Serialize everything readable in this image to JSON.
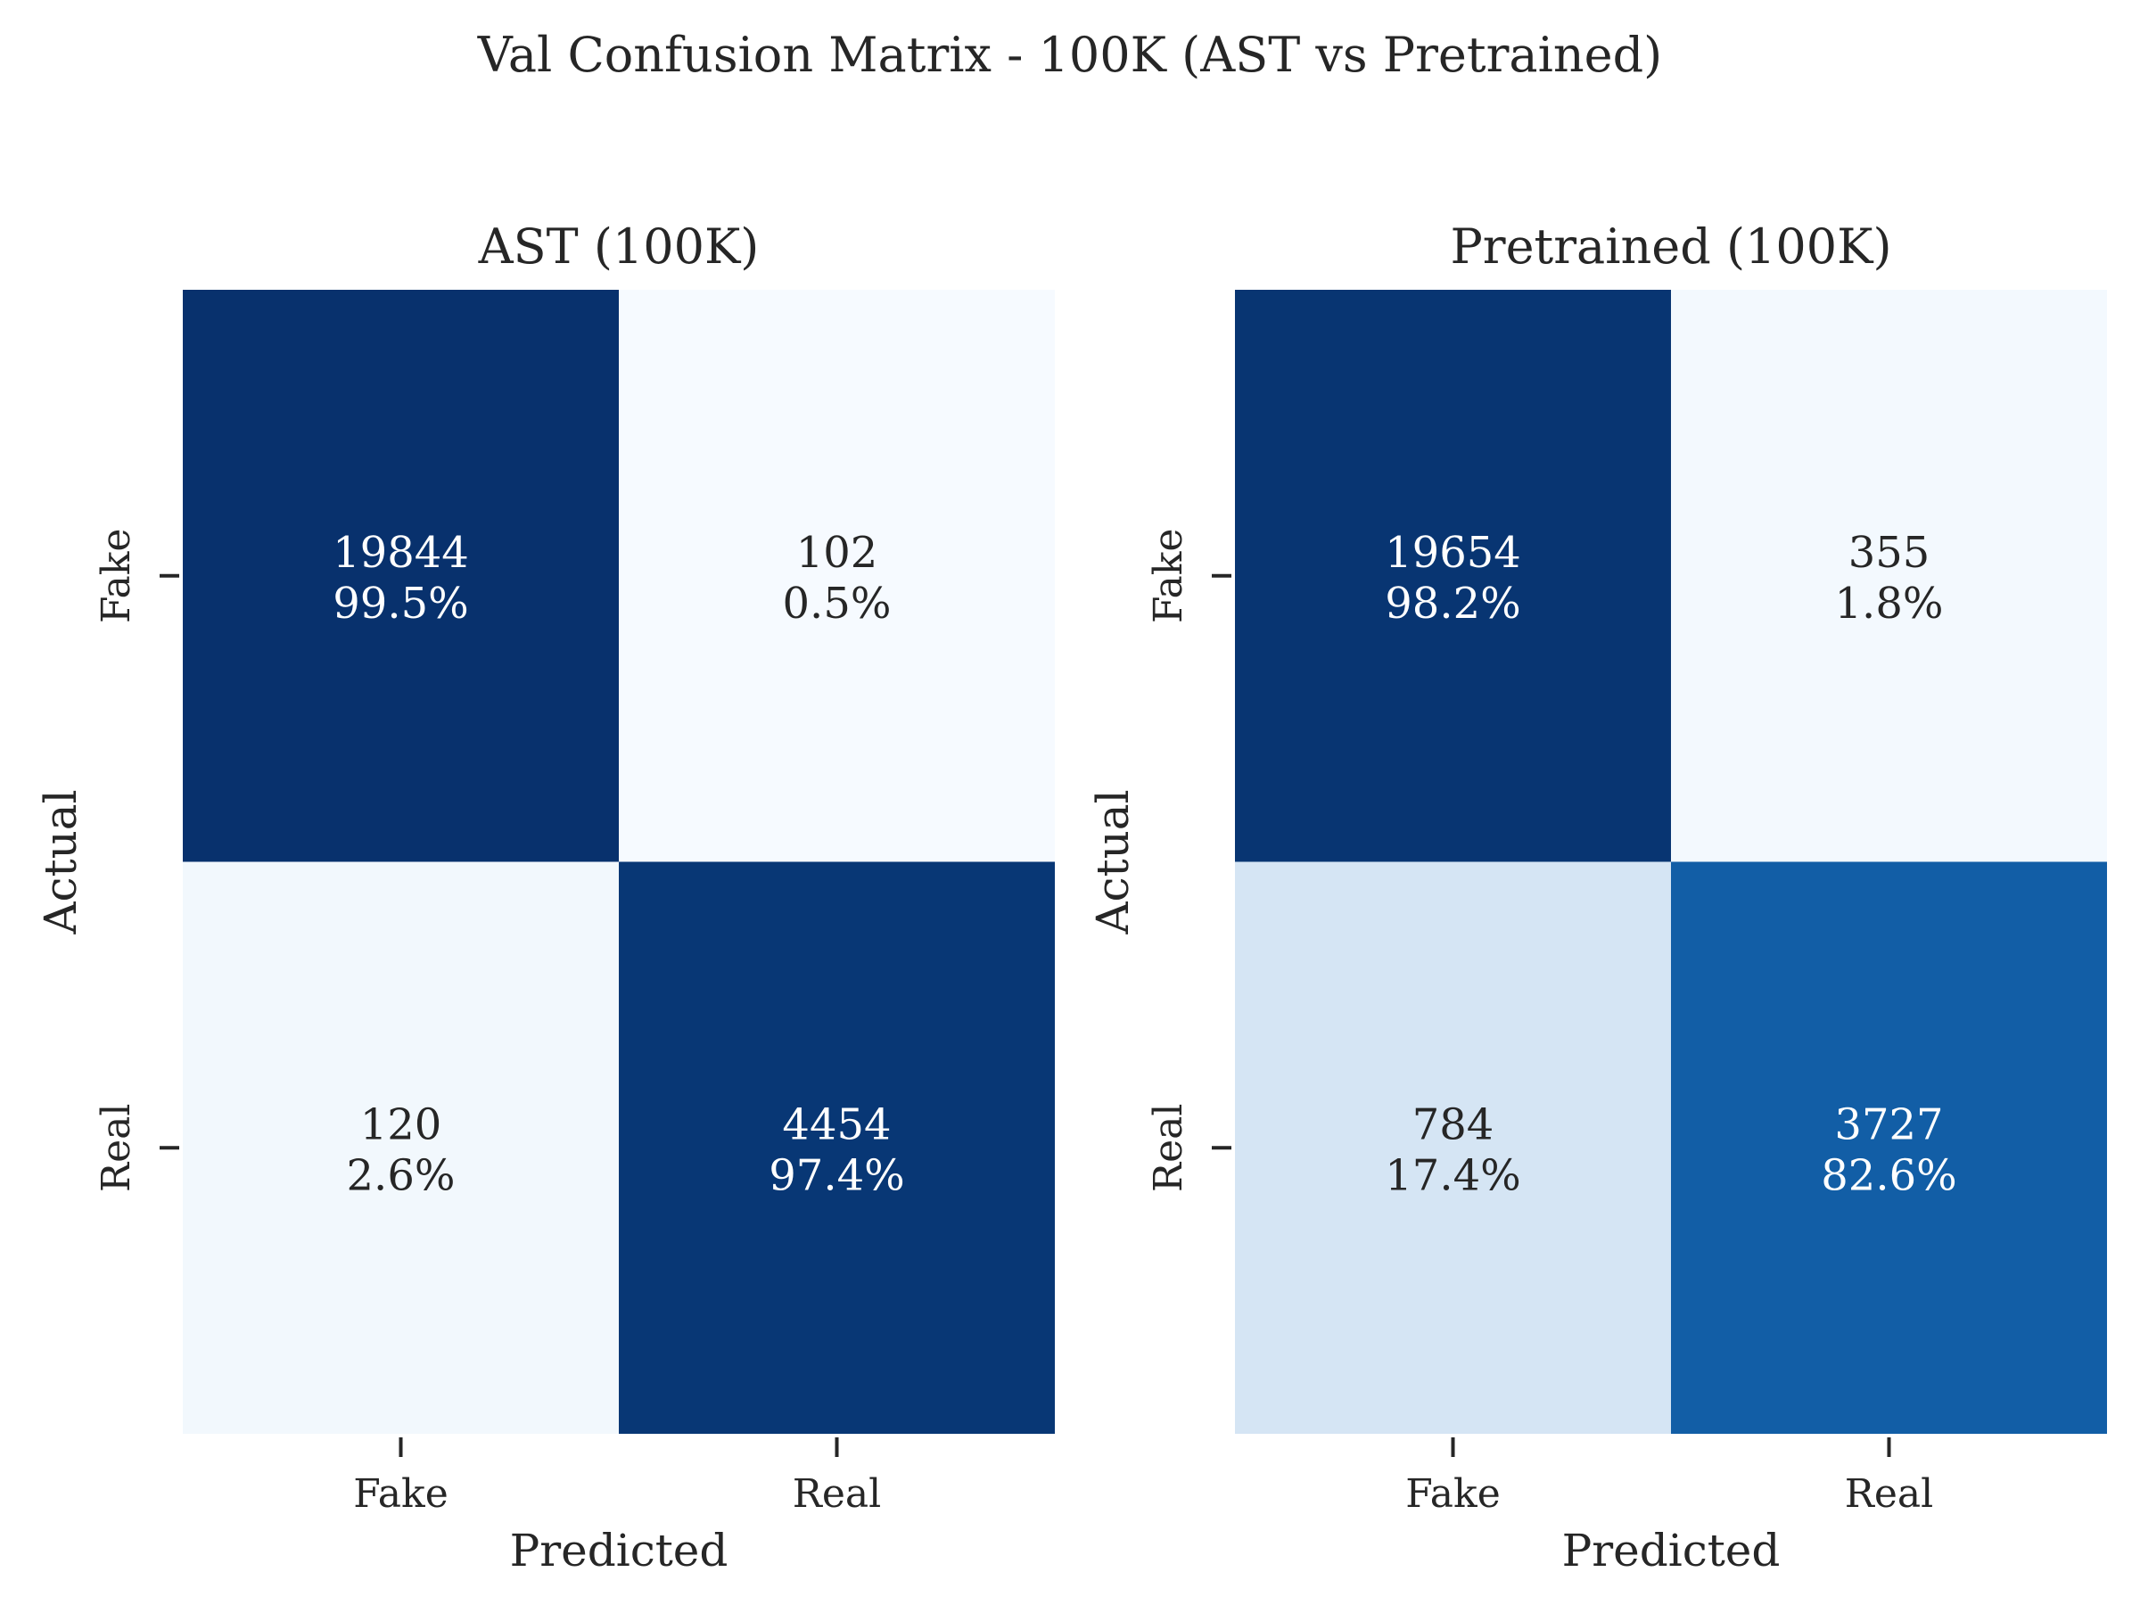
{
  "figure": {
    "suptitle": "Val Confusion Matrix - 100K (AST vs Pretrained)"
  },
  "colors": {
    "text_dark": "#262626",
    "text_light": "#ffffff",
    "colormap": "Blues",
    "colormap_low": "#f7fbff",
    "colormap_high": "#08306b"
  },
  "chart_data": [
    {
      "type": "heatmap",
      "title": "AST (100K)",
      "xlabel": "Predicted",
      "ylabel": "Actual",
      "x_categories": [
        "Fake",
        "Real"
      ],
      "y_categories": [
        "Fake",
        "Real"
      ],
      "counts": [
        [
          19844,
          102
        ],
        [
          120,
          4454
        ]
      ],
      "percent_labels": [
        [
          "99.5%",
          "0.5%"
        ],
        [
          "2.6%",
          "97.4%"
        ]
      ],
      "row_normalized": [
        [
          0.995,
          0.005
        ],
        [
          0.026,
          0.974
        ]
      ],
      "colorbar": false,
      "grid": false
    },
    {
      "type": "heatmap",
      "title": "Pretrained (100K)",
      "xlabel": "Predicted",
      "ylabel": "Actual",
      "x_categories": [
        "Fake",
        "Real"
      ],
      "y_categories": [
        "Fake",
        "Real"
      ],
      "counts": [
        [
          19654,
          355
        ],
        [
          784,
          3727
        ]
      ],
      "percent_labels": [
        [
          "98.2%",
          "1.8%"
        ],
        [
          "17.4%",
          "82.6%"
        ]
      ],
      "row_normalized": [
        [
          0.982,
          0.018
        ],
        [
          0.174,
          0.826
        ]
      ],
      "colorbar": false,
      "grid": false
    }
  ]
}
